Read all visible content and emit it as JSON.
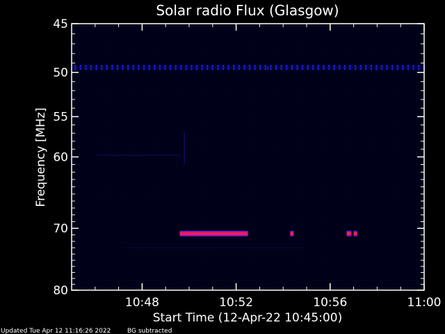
{
  "chart_data": {
    "type": "heatmap",
    "title": "Solar radio Flux (Glasgow)",
    "xlabel": "Start Time (12-Apr-22 10:45:00)",
    "ylabel": "Frequency [MHz]",
    "x_range_minutes": [
      0,
      15
    ],
    "x_ticks": [
      {
        "minute": 3,
        "label": "10:48"
      },
      {
        "minute": 7,
        "label": "10:52"
      },
      {
        "minute": 11,
        "label": "10:56"
      },
      {
        "minute": 15,
        "label": "11:00"
      }
    ],
    "y_range_mhz": [
      45,
      80
    ],
    "y_scale": "log",
    "y_ticks": [
      {
        "mhz": 45,
        "label": "45"
      },
      {
        "mhz": 50,
        "label": "50"
      },
      {
        "mhz": 55,
        "label": "55"
      },
      {
        "mhz": 60,
        "label": "60"
      },
      {
        "mhz": 70,
        "label": "70"
      },
      {
        "mhz": 80,
        "label": "80"
      }
    ],
    "background_color": "#000018",
    "features": [
      {
        "kind": "band",
        "mhz": 49.5,
        "minute_start": 0,
        "minute_end": 15,
        "color": "#1a1aff"
      },
      {
        "kind": "burst",
        "mhz": 70.8,
        "minute_start": 4.6,
        "minute_end": 7.5,
        "color": "#ff1a55"
      },
      {
        "kind": "burst",
        "mhz": 70.8,
        "minute_start": 9.3,
        "minute_end": 9.45,
        "color": "#ff1a55"
      },
      {
        "kind": "burst",
        "mhz": 70.8,
        "minute_start": 11.7,
        "minute_end": 11.9,
        "color": "#ff1a55"
      },
      {
        "kind": "burst",
        "mhz": 70.8,
        "minute_start": 12.0,
        "minute_end": 12.15,
        "color": "#ff1a55"
      }
    ]
  },
  "footer": {
    "updated": "Updated Tue Apr 12 11:16:26 2022",
    "note": "BG subtracted"
  }
}
